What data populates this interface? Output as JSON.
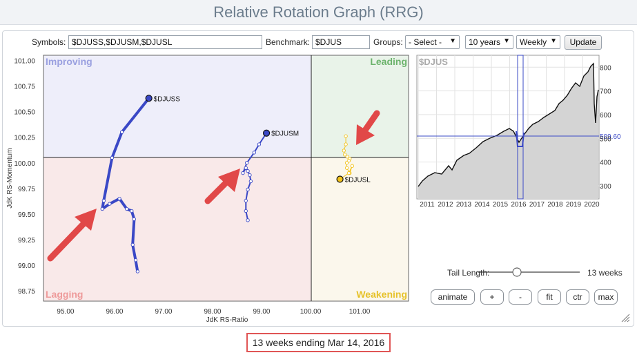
{
  "title": "Relative Rotation Graph (RRG)",
  "controls": {
    "symbols_label": "Symbols:",
    "symbols_value": "$DJUSS,$DJUSM,$DJUSL",
    "benchmark_label": "Benchmark:",
    "benchmark_value": "$DJUS",
    "groups_label": "Groups:",
    "groups_selected": "- Select -",
    "period_selected": "10 years",
    "frequency_selected": "Weekly",
    "update_label": "Update"
  },
  "rrg": {
    "quadrants": {
      "improving": "Improving",
      "leading": "Leading",
      "lagging": "Lagging",
      "weakening": "Weakening"
    },
    "x_axis_label": "JdK RS-Ratio",
    "y_axis_label": "JdK RS-Momentum",
    "x_ticks": [
      "95.00",
      "96.00",
      "97.00",
      "98.00",
      "99.00",
      "100.00",
      "101.00"
    ],
    "y_ticks": [
      "101.00",
      "100.75",
      "100.50",
      "100.25",
      "100.00",
      "99.75",
      "99.50",
      "99.25",
      "99.00",
      "98.75"
    ],
    "center": [
      100,
      100
    ],
    "xlim": [
      94.55,
      102.0
    ],
    "ylim": [
      98.65,
      101.05
    ],
    "colors": {
      "improving": "#eeeefa",
      "leading": "#e9f3e9",
      "lagging": "#f9e9e9",
      "weakening": "#fbf7ec"
    }
  },
  "chart_data": {
    "type": "scatter",
    "xlabel": "JdK RS-Ratio",
    "ylabel": "JdK RS-Momentum",
    "xlim": [
      94.55,
      102.0
    ],
    "ylim": [
      98.65,
      101.05
    ],
    "series": [
      {
        "name": "$DJUSS",
        "color": "#3a48c6",
        "tail_width": 4,
        "x": [
          96.47,
          96.43,
          96.37,
          96.4,
          96.35,
          96.25,
          96.1,
          95.9,
          95.75,
          95.78,
          95.95,
          96.15,
          96.7
        ],
        "y": [
          98.94,
          99.05,
          99.2,
          99.45,
          99.53,
          99.55,
          99.65,
          99.6,
          99.55,
          99.63,
          100.05,
          100.3,
          100.63
        ]
      },
      {
        "name": "$DJUSM",
        "color": "#3a48c6",
        "tail_width": 2,
        "x": [
          98.72,
          98.68,
          98.68,
          98.72,
          98.78,
          98.76,
          98.72,
          98.68,
          98.62,
          98.7,
          98.85,
          98.95,
          99.1
        ],
        "y": [
          99.44,
          99.53,
          99.63,
          99.74,
          99.82,
          99.88,
          99.92,
          99.95,
          99.9,
          100.0,
          100.1,
          100.18,
          100.29
        ]
      },
      {
        "name": "$DJUSL",
        "color": "#f2c21a",
        "tail_width": 1,
        "x": [
          100.72,
          100.72,
          100.68,
          100.7,
          100.75,
          100.8,
          100.78,
          100.74,
          100.74,
          100.8,
          100.85,
          100.78,
          100.6
        ],
        "y": [
          100.26,
          100.18,
          100.12,
          100.08,
          100.06,
          100.04,
          100.02,
          100.0,
          99.95,
          99.9,
          99.97,
          99.9,
          99.84
        ]
      }
    ]
  },
  "mini_chart": {
    "symbol": "$DJUS",
    "years": [
      "2011",
      "2012",
      "2013",
      "2014",
      "2015",
      "2016",
      "2017",
      "2018",
      "2019",
      "2020"
    ],
    "y_ticks": [
      "800",
      "700",
      "600",
      "500",
      "400",
      "300"
    ],
    "current_value": "509.60",
    "line_color": "#3a48c6"
  },
  "tail": {
    "label": "Tail Length:",
    "value_text": "13 weeks",
    "value_fraction": 0.48
  },
  "buttons": {
    "animate": "animate",
    "plus": "+",
    "minus": "-",
    "fit": "fit",
    "ctr": "ctr",
    "max": "max"
  },
  "caption": "13 weeks ending Mar 14, 2016"
}
